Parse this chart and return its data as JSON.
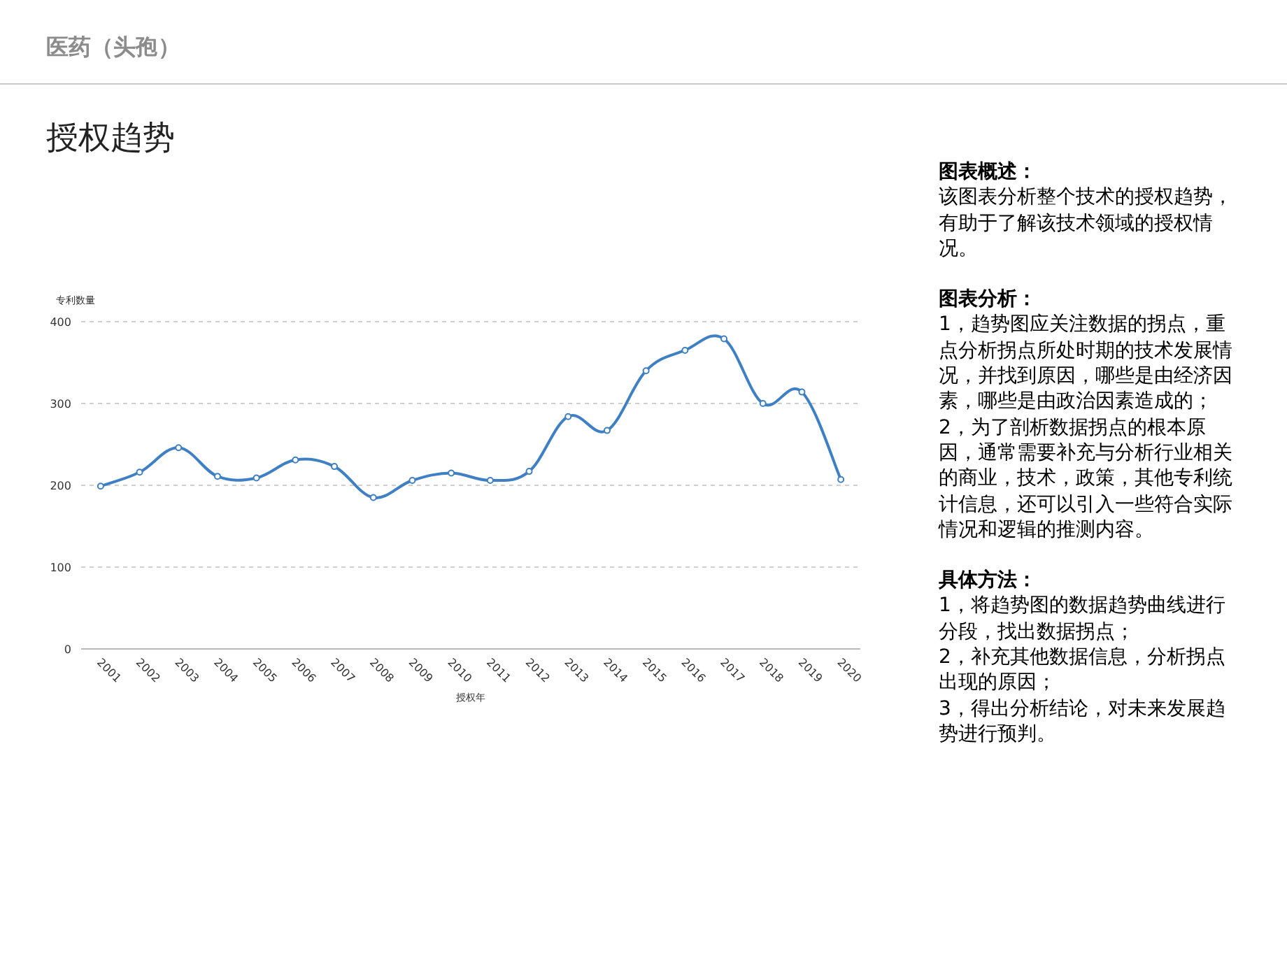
{
  "chart_data": [
    {
      "type": "line",
      "title": "授权趋势",
      "ylabel": "专利数量",
      "xlabel": "授权年",
      "annotations": [
        "医药（头孢）"
      ],
      "categories": [
        "2001",
        "2002",
        "2003",
        "2004",
        "2005",
        "2006",
        "2007",
        "2008",
        "2009",
        "2010",
        "2011",
        "2012",
        "2013",
        "2014",
        "2015",
        "2016",
        "2017",
        "2018",
        "2019",
        "2020"
      ],
      "series": [
        {
          "color": "#3f7fc4",
          "values": [
            199,
            216,
            246,
            211,
            209,
            231,
            223,
            185,
            206,
            215,
            206,
            217,
            284,
            267,
            340,
            365,
            379,
            300,
            314,
            207
          ]
        }
      ],
      "ylim": [
        0,
        400
      ],
      "yticks": [
        0,
        100,
        200,
        300,
        400
      ],
      "grid": "y",
      "marker": "circle",
      "line_style": "solid"
    },
    {
      "type": "other",
      "title": "图表概述：",
      "annotations": [
        "该图表分析整个技术的授权趋势，有助于了解该技术领域的授权情况。"
      ]
    },
    {
      "type": "other",
      "title": "图表分析：",
      "annotations": [
        "1，趋势图应关注数据的拐点，重点分析拐点所处时期的技术发展情况，并找到原因，哪些是由经济因素，哪些是由政治因素造成的；",
        "2，为了剖析数据拐点的根本原因，通常需要补充与分析行业相关的商业，技术，政策，其他专利统计信息，还可以引入一些符合实际情况和逻辑的推测内容。"
      ]
    },
    {
      "type": "other",
      "title": "具体方法：",
      "annotations": [
        "1，将趋势图的数据趋势曲线进行分段，找出数据拐点；",
        "2，补充其他数据信息，分析拐点出现的原因；",
        "3，得出分析结论，对未来发展趋势进行预判。"
      ]
    }
  ]
}
